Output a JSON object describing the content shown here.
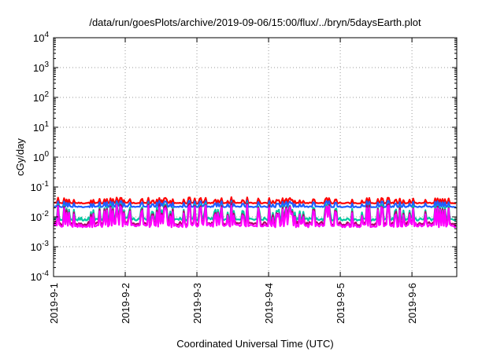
{
  "chart_data": {
    "type": "line",
    "title": "/data/run/goesPlots/archive/2019-09-06/15:00/flux/../bryn/5daysEarth.plot",
    "xlabel": "Coordinated Universal Time (UTC)",
    "ylabel": "cGy/day",
    "yscale": "log",
    "ylim": [
      0.0001,
      10000
    ],
    "xlim": [
      "2019-09-01",
      "2019-09-06 15:00"
    ],
    "x_tick_labels": [
      "2019-9-1",
      "2019-9-2",
      "2019-9-3",
      "2019-9-4",
      "2019-9-5",
      "2019-9-6"
    ],
    "y_ticks": [
      {
        "value": 0.0001,
        "base": "10",
        "exp": "-4"
      },
      {
        "value": 0.001,
        "base": "10",
        "exp": "-3"
      },
      {
        "value": 0.01,
        "base": "10",
        "exp": "-2"
      },
      {
        "value": 0.1,
        "base": "10",
        "exp": "-1"
      },
      {
        "value": 1,
        "base": "10",
        "exp": "0"
      },
      {
        "value": 10,
        "base": "10",
        "exp": "1"
      },
      {
        "value": 100,
        "base": "10",
        "exp": "2"
      },
      {
        "value": 1000,
        "base": "10",
        "exp": "3"
      },
      {
        "value": 10000,
        "base": "10",
        "exp": "4"
      }
    ],
    "grid": true,
    "series": [
      {
        "color": "#ff0000",
        "baseline": 0.028,
        "spike": 0.045
      },
      {
        "color": "#1f5fff",
        "baseline": 0.021,
        "spike": 0.035
      },
      {
        "color": "#00c8a0",
        "baseline": 0.0075,
        "spike": 0.03
      },
      {
        "color": "#b0006e",
        "baseline": 0.0052,
        "spike": 0.028
      },
      {
        "color": "#ff00ff",
        "baseline": 0.0045,
        "spike": 0.025
      }
    ]
  }
}
